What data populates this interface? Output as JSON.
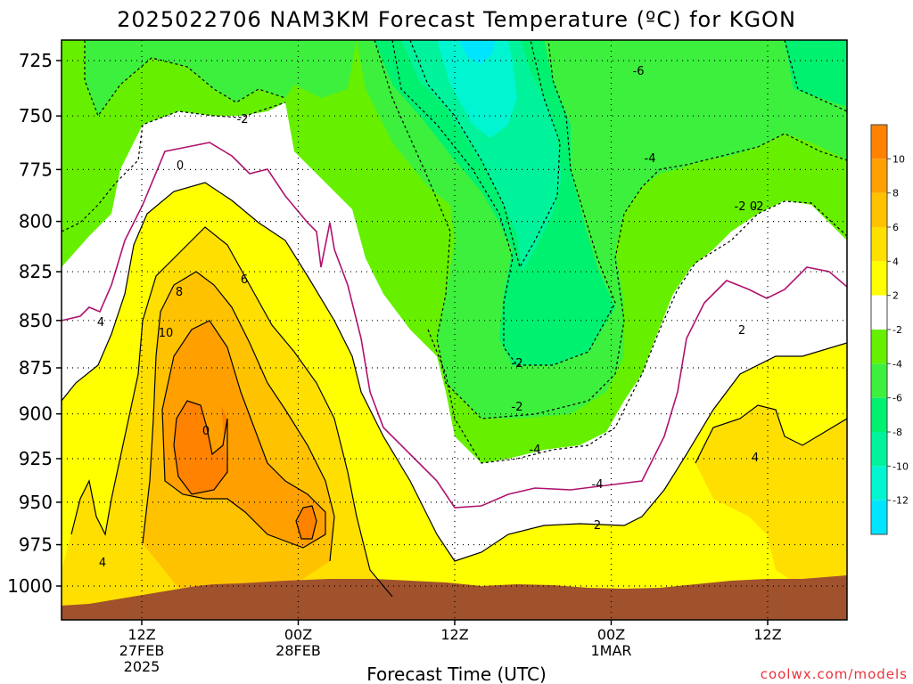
{
  "chart_data": {
    "type": "heatmap",
    "title": "2025022706 NAM3KM Forecast Temperature (ºC) for KGON",
    "xlabel": "Forecast Time (UTC)",
    "ylabel": "",
    "x_tick_labels": [
      {
        "time": "12Z",
        "date": "27FEB",
        "year": "2025"
      },
      {
        "time": "00Z",
        "date": "28FEB",
        "year": ""
      },
      {
        "time": "12Z",
        "date": "",
        "year": ""
      },
      {
        "time": "00Z",
        "date": "1MAR",
        "year": ""
      },
      {
        "time": "12Z",
        "date": "",
        "year": ""
      }
    ],
    "y_ticks": [
      725,
      750,
      775,
      800,
      825,
      850,
      875,
      900,
      925,
      950,
      975,
      1000
    ],
    "y_unit": "hPa",
    "y_scale": "log-pressure (inverted)",
    "colorbar": {
      "levels": [
        -14,
        -12,
        -10,
        -8,
        -6,
        -4,
        -2,
        2,
        4,
        6,
        8,
        10,
        12
      ],
      "tick_labels": [
        "-12",
        "-10",
        "-8",
        "-6",
        "-4",
        "-2",
        "2",
        "4",
        "6",
        "8",
        "10"
      ],
      "colors": [
        "#00e5ff",
        "#00f5d0",
        "#00f39a",
        "#00f070",
        "#3df03d",
        "#66f000",
        "#ffffff",
        "#ffff00",
        "#ffdf00",
        "#ffc200",
        "#ffa000",
        "#ff8200"
      ]
    },
    "contour_labels": [
      "-6",
      "-4",
      "-2",
      "-2",
      "0",
      "4",
      "6",
      "8",
      "10",
      "0",
      "-4",
      "-2",
      "-4",
      "-2",
      "0",
      "2",
      "-2",
      "2",
      "4",
      "4"
    ],
    "grid": "dotted",
    "terrain_color": "#a0522d"
  },
  "watermark": "coolwx.com/models"
}
